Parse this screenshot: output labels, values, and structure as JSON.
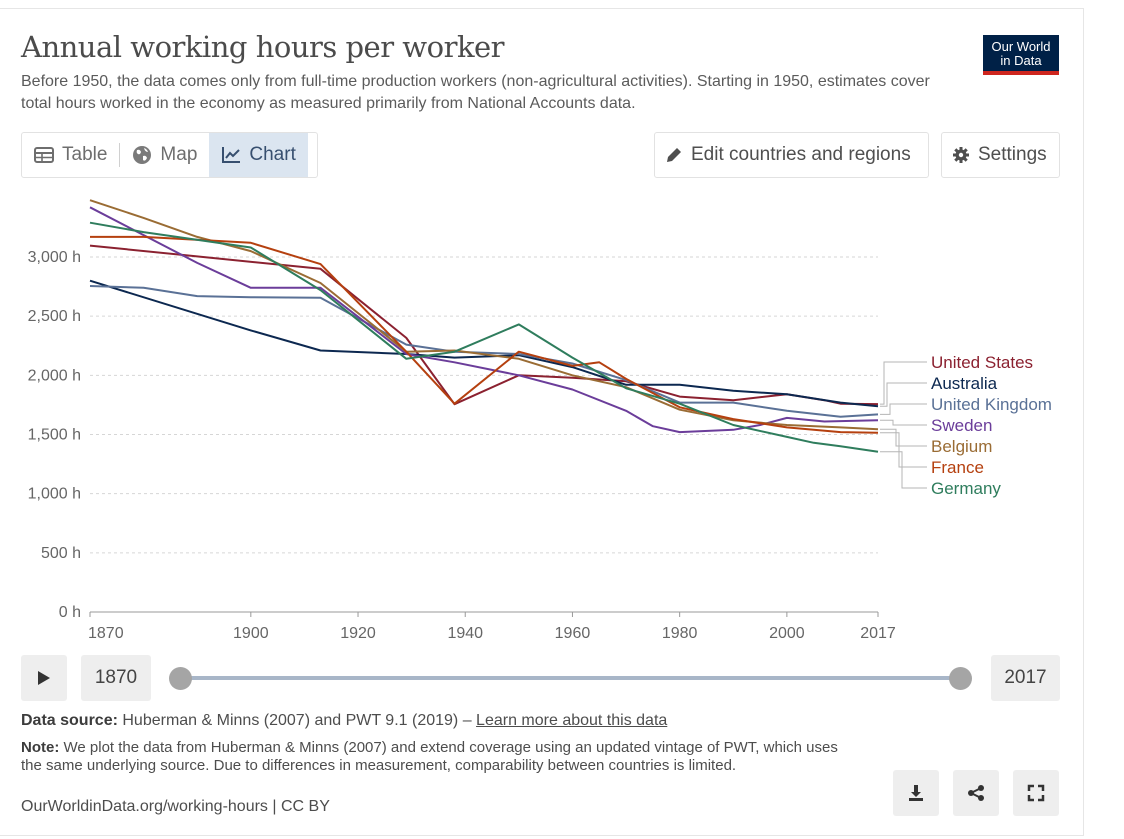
{
  "header": {
    "title": "Annual working hours per worker",
    "subtitle": "Before 1950, the data comes only from full-time production workers (non-agricultural activities). Starting in 1950, estimates cover total hours worked in the economy as measured primarily from National Accounts data.",
    "logo_line1": "Our World",
    "logo_line2": "in Data"
  },
  "tabs": [
    {
      "label": "Table",
      "icon": "table-icon"
    },
    {
      "label": "Map",
      "icon": "globe-icon"
    },
    {
      "label": "Chart",
      "icon": "line-chart-icon"
    }
  ],
  "toolbar": {
    "edit_label": "Edit countries and regions",
    "settings_label": "Settings"
  },
  "timeline": {
    "start": "1870",
    "end": "2017"
  },
  "footer": {
    "source_label": "Data source:",
    "source_text": "Huberman & Minns (2007) and PWT 9.1 (2019) –",
    "source_link": "Learn more about this data",
    "note_label": "Note:",
    "note_text": "We plot the data from Huberman & Minns (2007) and extend coverage using an updated vintage of PWT, which uses the same underlying source. Due to differences in measurement, comparability between countries is limited.",
    "credit": "OurWorldinData.org/working-hours | CC BY"
  },
  "colors": {
    "United States": "#8b2130",
    "Australia": "#0c2850",
    "United Kingdom": "#5a7196",
    "Sweden": "#6b3d9a",
    "Belgium": "#9a6c34",
    "France": "#b5400f",
    "Germany": "#2f7d5d"
  },
  "chart_data": {
    "type": "line",
    "title": "Annual working hours per worker",
    "xlabel": "",
    "ylabel": "",
    "xlim": [
      1870,
      2017
    ],
    "ylim": [
      0,
      3500
    ],
    "y_ticks": [
      0,
      500,
      1000,
      1500,
      2000,
      2500,
      3000
    ],
    "y_tick_labels": [
      "0 h",
      "500 h",
      "1,000 h",
      "1,500 h",
      "2,000 h",
      "2,500 h",
      "3,000 h"
    ],
    "x_ticks": [
      1870,
      1900,
      1920,
      1940,
      1960,
      1980,
      2000,
      2017
    ],
    "x_tick_labels": [
      "1870",
      "1900",
      "1920",
      "1940",
      "1960",
      "1980",
      "2000",
      "2017"
    ],
    "grid": "horizontal",
    "legend": "right, end-of-line labels",
    "series": [
      {
        "name": "United States",
        "points": [
          [
            1870,
            3096
          ],
          [
            1913,
            2900
          ],
          [
            1929,
            2316
          ],
          [
            1938,
            1756
          ],
          [
            1950,
            2000
          ],
          [
            1960,
            1980
          ],
          [
            1970,
            1950
          ],
          [
            1980,
            1820
          ],
          [
            1990,
            1790
          ],
          [
            2000,
            1840
          ],
          [
            2007,
            1790
          ],
          [
            2010,
            1760
          ],
          [
            2017,
            1757
          ]
        ]
      },
      {
        "name": "Australia",
        "points": [
          [
            1870,
            2800
          ],
          [
            1900,
            2380
          ],
          [
            1913,
            2210
          ],
          [
            1929,
            2180
          ],
          [
            1938,
            2150
          ],
          [
            1950,
            2170
          ],
          [
            1960,
            2070
          ],
          [
            1970,
            1920
          ],
          [
            1980,
            1920
          ],
          [
            1990,
            1870
          ],
          [
            2000,
            1840
          ],
          [
            2010,
            1770
          ],
          [
            2017,
            1738
          ]
        ]
      },
      {
        "name": "United Kingdom",
        "points": [
          [
            1870,
            2755
          ],
          [
            1880,
            2740
          ],
          [
            1890,
            2670
          ],
          [
            1900,
            2660
          ],
          [
            1913,
            2655
          ],
          [
            1929,
            2260
          ],
          [
            1938,
            2200
          ],
          [
            1950,
            2180
          ],
          [
            1960,
            2100
          ],
          [
            1970,
            1960
          ],
          [
            1980,
            1770
          ],
          [
            1990,
            1770
          ],
          [
            2000,
            1700
          ],
          [
            2010,
            1650
          ],
          [
            2017,
            1670
          ]
        ]
      },
      {
        "name": "Sweden",
        "points": [
          [
            1870,
            3420
          ],
          [
            1890,
            2950
          ],
          [
            1900,
            2740
          ],
          [
            1913,
            2740
          ],
          [
            1929,
            2180
          ],
          [
            1938,
            2110
          ],
          [
            1950,
            2000
          ],
          [
            1960,
            1880
          ],
          [
            1970,
            1700
          ],
          [
            1975,
            1570
          ],
          [
            1980,
            1520
          ],
          [
            1990,
            1540
          ],
          [
            1995,
            1580
          ],
          [
            2000,
            1640
          ],
          [
            2007,
            1610
          ],
          [
            2017,
            1621
          ]
        ]
      },
      {
        "name": "Belgium",
        "points": [
          [
            1870,
            3480
          ],
          [
            1880,
            3330
          ],
          [
            1890,
            3170
          ],
          [
            1900,
            3050
          ],
          [
            1913,
            2780
          ],
          [
            1929,
            2200
          ],
          [
            1938,
            2210
          ],
          [
            1950,
            2140
          ],
          [
            1960,
            2000
          ],
          [
            1970,
            1900
          ],
          [
            1980,
            1710
          ],
          [
            1990,
            1620
          ],
          [
            2000,
            1580
          ],
          [
            2010,
            1560
          ],
          [
            2017,
            1545
          ]
        ]
      },
      {
        "name": "France",
        "points": [
          [
            1870,
            3170
          ],
          [
            1880,
            3170
          ],
          [
            1900,
            3120
          ],
          [
            1913,
            2940
          ],
          [
            1929,
            2200
          ],
          [
            1938,
            1760
          ],
          [
            1950,
            2200
          ],
          [
            1960,
            2080
          ],
          [
            1965,
            2110
          ],
          [
            1970,
            1970
          ],
          [
            1980,
            1730
          ],
          [
            1990,
            1630
          ],
          [
            2000,
            1560
          ],
          [
            2010,
            1520
          ],
          [
            2017,
            1514
          ]
        ]
      },
      {
        "name": "Germany",
        "points": [
          [
            1870,
            3290
          ],
          [
            1880,
            3210
          ],
          [
            1900,
            3080
          ],
          [
            1913,
            2720
          ],
          [
            1929,
            2140
          ],
          [
            1938,
            2200
          ],
          [
            1950,
            2430
          ],
          [
            1960,
            2150
          ],
          [
            1970,
            1890
          ],
          [
            1980,
            1760
          ],
          [
            1990,
            1580
          ],
          [
            2000,
            1480
          ],
          [
            2005,
            1430
          ],
          [
            2010,
            1400
          ],
          [
            2017,
            1354
          ]
        ]
      }
    ]
  }
}
